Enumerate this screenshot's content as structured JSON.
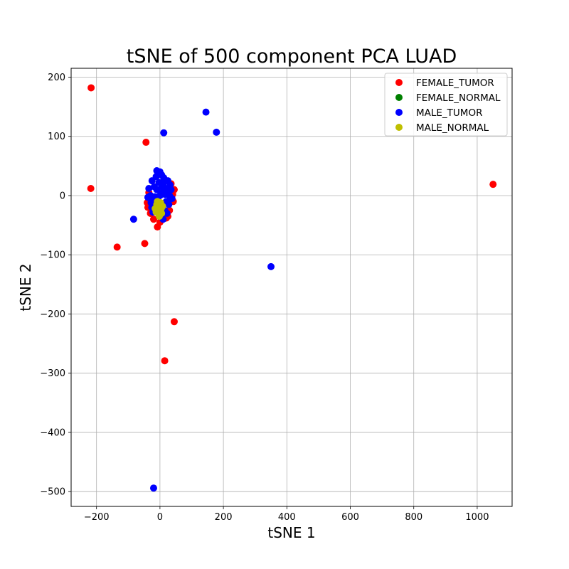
{
  "chart_data": {
    "type": "scatter",
    "title": "tSNE of 500 component PCA LUAD",
    "xlabel": "tSNE 1",
    "ylabel": "tSNE 2",
    "xlim": [
      -280,
      1110
    ],
    "ylim": [
      -525,
      215
    ],
    "xticks": [
      -200,
      0,
      200,
      400,
      600,
      800,
      1000
    ],
    "yticks": [
      -500,
      -400,
      -300,
      -200,
      -100,
      0,
      100,
      200
    ],
    "grid": true,
    "legend_position": "top-right",
    "series": [
      {
        "name": "FEMALE_TUMOR",
        "color": "#ff0000",
        "points": [
          [
            -217,
            182
          ],
          [
            -218,
            12
          ],
          [
            -44,
            90
          ],
          [
            -135,
            -87
          ],
          [
            -48,
            -81
          ],
          [
            1050,
            19
          ],
          [
            -8,
            -53
          ],
          [
            45,
            -213
          ],
          [
            15,
            -279
          ],
          [
            -40,
            -12
          ],
          [
            40,
            2
          ],
          [
            30,
            -25
          ],
          [
            -30,
            -30
          ],
          [
            45,
            10
          ],
          [
            -35,
            5
          ],
          [
            35,
            20
          ],
          [
            -20,
            -40
          ],
          [
            20,
            -38
          ],
          [
            -38,
            -20
          ],
          [
            42,
            -10
          ],
          [
            0,
            -45
          ],
          [
            25,
            -35
          ]
        ]
      },
      {
        "name": "FEMALE_NORMAL",
        "color": "#008000",
        "points": []
      },
      {
        "name": "MALE_TUMOR",
        "color": "#0000ff",
        "points": [
          [
            145,
            141
          ],
          [
            178,
            107
          ],
          [
            12,
            106
          ],
          [
            -83,
            -40
          ],
          [
            350,
            -120
          ],
          [
            -20,
            -494
          ],
          [
            0,
            0
          ],
          [
            10,
            20
          ],
          [
            -10,
            10
          ],
          [
            20,
            -10
          ],
          [
            -20,
            -5
          ],
          [
            5,
            35
          ],
          [
            -5,
            -30
          ],
          [
            25,
            25
          ],
          [
            -25,
            25
          ],
          [
            30,
            0
          ],
          [
            -30,
            0
          ],
          [
            15,
            -25
          ],
          [
            -15,
            -25
          ],
          [
            0,
            40
          ],
          [
            8,
            5
          ],
          [
            -8,
            -8
          ],
          [
            18,
            12
          ],
          [
            -18,
            15
          ],
          [
            28,
            -15
          ],
          [
            -28,
            -12
          ],
          [
            12,
            30
          ],
          [
            -12,
            32
          ],
          [
            22,
            -30
          ],
          [
            -22,
            -28
          ],
          [
            35,
            10
          ],
          [
            -35,
            12
          ],
          [
            3,
            -18
          ],
          [
            -3,
            22
          ],
          [
            38,
            -5
          ],
          [
            -38,
            -3
          ],
          [
            16,
            2
          ],
          [
            -16,
            -2
          ],
          [
            6,
            15
          ],
          [
            -6,
            -15
          ],
          [
            26,
            8
          ],
          [
            -26,
            -20
          ],
          [
            10,
            -40
          ],
          [
            -10,
            42
          ],
          [
            32,
            18
          ]
        ]
      },
      {
        "name": "MALE_NORMAL",
        "color": "#bfbf00",
        "points": [
          [
            -10,
            -15
          ],
          [
            -5,
            -25
          ],
          [
            0,
            -20
          ],
          [
            -15,
            -22
          ],
          [
            5,
            -30
          ],
          [
            -8,
            -10
          ],
          [
            2,
            -12
          ],
          [
            -12,
            -28
          ],
          [
            8,
            -18
          ],
          [
            -2,
            -35
          ],
          [
            4,
            -22
          ],
          [
            -6,
            -18
          ]
        ]
      }
    ]
  }
}
